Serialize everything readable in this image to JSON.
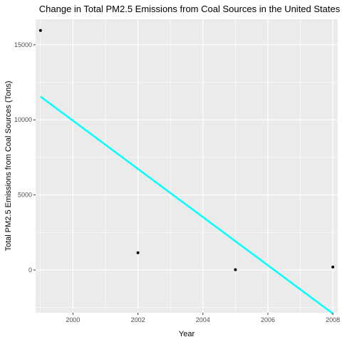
{
  "chart_data": {
    "type": "scatter",
    "title": "Change in Total PM2.5 Emissions from Coal Sources in the United States",
    "xlabel": "Year",
    "ylabel": "Total PM2.5 Emissions from Coal Sources (Tons)",
    "xlim": [
      1998.85,
      2008.15
    ],
    "ylim": [
      -2850,
      16700
    ],
    "x_ticks": [
      2000,
      2002,
      2004,
      2006,
      2008
    ],
    "x_tick_labels": [
      "2000",
      "2002",
      "2004",
      "2006",
      "2008"
    ],
    "y_ticks": [
      0,
      5000,
      10000,
      15000
    ],
    "y_tick_labels": [
      "0",
      "5000",
      "10000",
      "15000"
    ],
    "grid": true,
    "legend": "none",
    "colors": {
      "panel_background": "#ebebeb",
      "gridline": "#ffffff",
      "points": "#000000",
      "trend_line": "#00ffff"
    },
    "series": [
      {
        "type": "scatter",
        "x": [
          1999,
          2002,
          2005,
          2008
        ],
        "y": [
          15950,
          1150,
          20,
          200
        ]
      },
      {
        "type": "line",
        "x": [
          1999,
          2008
        ],
        "y": [
          11550,
          -2900
        ]
      }
    ]
  }
}
